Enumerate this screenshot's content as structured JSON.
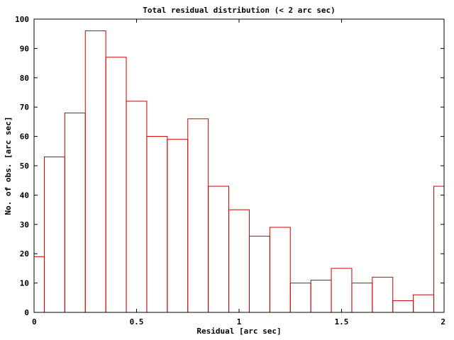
{
  "chart_data": {
    "type": "bar",
    "title": "Total residual distribution (< 2 arc sec)",
    "xlabel": "Residual [arc sec]",
    "ylabel": "No. of obs. [arc sec]",
    "xlim": [
      0,
      2
    ],
    "ylim": [
      0,
      100
    ],
    "x_ticks": [
      "0",
      "0.5",
      "1",
      "1.5",
      "2"
    ],
    "y_ticks": [
      "0",
      "10",
      "20",
      "30",
      "40",
      "50",
      "60",
      "70",
      "80",
      "90",
      "100"
    ],
    "grid": false,
    "bar_color": "#cc0000",
    "bins": [
      {
        "x0": 0.0,
        "x1": 0.05,
        "value": 19
      },
      {
        "x0": 0.05,
        "x1": 0.15,
        "value": 53
      },
      {
        "x0": 0.15,
        "x1": 0.25,
        "value": 68
      },
      {
        "x0": 0.25,
        "x1": 0.35,
        "value": 96
      },
      {
        "x0": 0.35,
        "x1": 0.45,
        "value": 87
      },
      {
        "x0": 0.45,
        "x1": 0.55,
        "value": 72
      },
      {
        "x0": 0.55,
        "x1": 0.65,
        "value": 60
      },
      {
        "x0": 0.65,
        "x1": 0.75,
        "value": 59
      },
      {
        "x0": 0.75,
        "x1": 0.85,
        "value": 66
      },
      {
        "x0": 0.85,
        "x1": 0.95,
        "value": 43
      },
      {
        "x0": 0.95,
        "x1": 1.05,
        "value": 35
      },
      {
        "x0": 1.05,
        "x1": 1.15,
        "value": 26
      },
      {
        "x0": 1.15,
        "x1": 1.25,
        "value": 29
      },
      {
        "x0": 1.25,
        "x1": 1.35,
        "value": 10
      },
      {
        "x0": 1.35,
        "x1": 1.45,
        "value": 11
      },
      {
        "x0": 1.45,
        "x1": 1.55,
        "value": 15
      },
      {
        "x0": 1.55,
        "x1": 1.65,
        "value": 10
      },
      {
        "x0": 1.65,
        "x1": 1.75,
        "value": 12
      },
      {
        "x0": 1.75,
        "x1": 1.85,
        "value": 4
      },
      {
        "x0": 1.85,
        "x1": 1.95,
        "value": 6
      },
      {
        "x0": 1.95,
        "x1": 2.0,
        "value": 43
      }
    ]
  }
}
